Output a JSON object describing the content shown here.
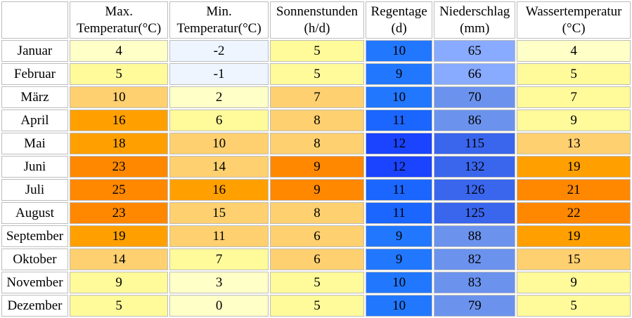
{
  "table": {
    "headers": [
      {
        "line1": "",
        "line2": ""
      },
      {
        "line1": "Max.",
        "line2": "Temperatur(°C)"
      },
      {
        "line1": "Min.",
        "line2": "Temperatur(°C)"
      },
      {
        "line1": "Sonnenstunden",
        "line2": "(h/d)"
      },
      {
        "line1": "Regentage",
        "line2": "(d)"
      },
      {
        "line1": "Niederschlag",
        "line2": "(mm)"
      },
      {
        "line1": "Wassertemperatur",
        "line2": "(°C)"
      }
    ],
    "rows": [
      {
        "month": "Januar",
        "max": "4",
        "min": "-2",
        "sun": "5",
        "rain_days": "10",
        "precip": "65",
        "water": "4"
      },
      {
        "month": "Februar",
        "max": "5",
        "min": "-1",
        "sun": "5",
        "rain_days": "9",
        "precip": "66",
        "water": "5"
      },
      {
        "month": "März",
        "max": "10",
        "min": "2",
        "sun": "7",
        "rain_days": "10",
        "precip": "70",
        "water": "7"
      },
      {
        "month": "April",
        "max": "16",
        "min": "6",
        "sun": "8",
        "rain_days": "11",
        "precip": "86",
        "water": "9"
      },
      {
        "month": "Mai",
        "max": "18",
        "min": "10",
        "sun": "8",
        "rain_days": "12",
        "precip": "115",
        "water": "13"
      },
      {
        "month": "Juni",
        "max": "23",
        "min": "14",
        "sun": "9",
        "rain_days": "12",
        "precip": "132",
        "water": "19"
      },
      {
        "month": "Juli",
        "max": "25",
        "min": "16",
        "sun": "9",
        "rain_days": "11",
        "precip": "126",
        "water": "21"
      },
      {
        "month": "August",
        "max": "23",
        "min": "15",
        "sun": "8",
        "rain_days": "11",
        "precip": "125",
        "water": "22"
      },
      {
        "month": "September",
        "max": "19",
        "min": "11",
        "sun": "6",
        "rain_days": "9",
        "precip": "88",
        "water": "19"
      },
      {
        "month": "Oktober",
        "max": "14",
        "min": "7",
        "sun": "6",
        "rain_days": "9",
        "precip": "82",
        "water": "15"
      },
      {
        "month": "November",
        "max": "9",
        "min": "3",
        "sun": "5",
        "rain_days": "10",
        "precip": "83",
        "water": "9"
      },
      {
        "month": "Dezember",
        "max": "5",
        "min": "0",
        "sun": "5",
        "rain_days": "10",
        "precip": "79",
        "water": "5"
      }
    ]
  },
  "colors": {
    "temp": {
      "below_zero": "#eef5ff",
      "t0_4": "#ffffc8",
      "t5_9": "#fffa9a",
      "t10_15": "#ffd070",
      "t16_19": "#ffa000",
      "t20_plus": "#ff8800"
    },
    "sun": {
      "h5": "#fffa9a",
      "h6_8": "#ffd070",
      "h9_plus": "#ff8800"
    },
    "rain_days": {
      "d9_10": "#2277ff",
      "d11": "#1a66ff",
      "d12_plus": "#1a44ff"
    },
    "precip": {
      "mm_under_70": "#88aaff",
      "mm_70_99": "#6b93ee",
      "mm_100_plus": "#3a66ee"
    },
    "border": "#bdbdbd"
  }
}
